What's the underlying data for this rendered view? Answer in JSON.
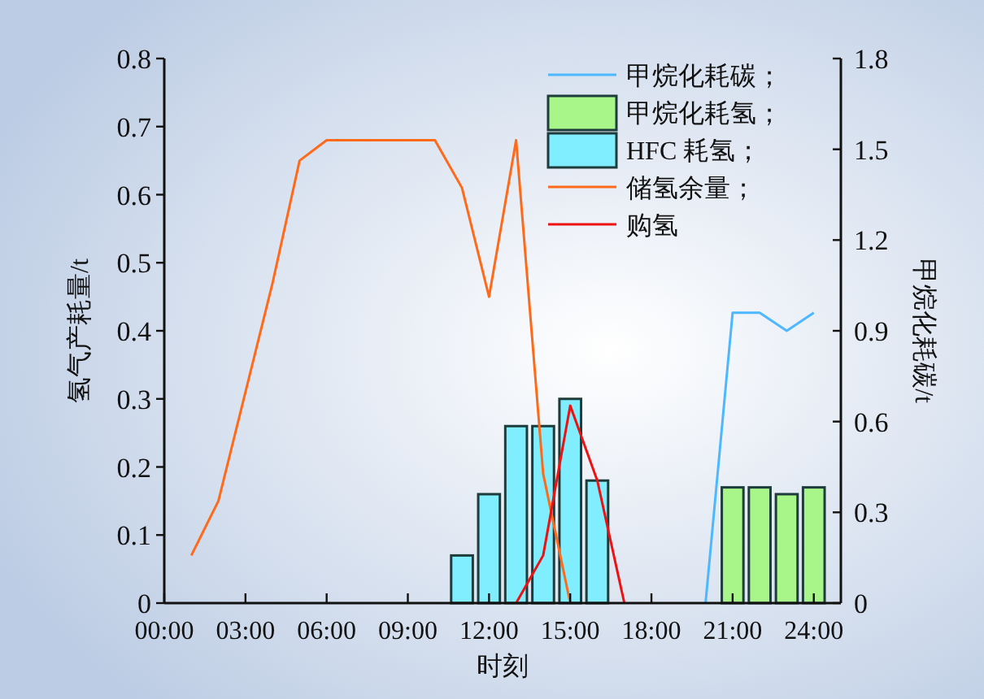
{
  "chart_data": {
    "type": "bar",
    "xlabel": "时刻",
    "ylabel": "氢气产耗量/t",
    "y2label": "甲烷化耗碳/t",
    "xlim": [
      0,
      25
    ],
    "xticks": [
      {
        "value": 0,
        "label": "00:00"
      },
      {
        "value": 3,
        "label": "03:00"
      },
      {
        "value": 6,
        "label": "06:00"
      },
      {
        "value": 9,
        "label": "09:00"
      },
      {
        "value": 12,
        "label": "12:00"
      },
      {
        "value": 15,
        "label": "15:00"
      },
      {
        "value": 18,
        "label": "18:00"
      },
      {
        "value": 21,
        "label": "21:00"
      },
      {
        "value": 24,
        "label": "24:00"
      }
    ],
    "ylim": [
      0,
      0.8
    ],
    "yticks": [
      0,
      0.1,
      0.2,
      0.3,
      0.4,
      0.5,
      0.6,
      0.7,
      0.8
    ],
    "y2lim": [
      0,
      1.8
    ],
    "y2ticks": [
      0,
      0.3,
      0.6,
      0.9,
      1.2,
      1.5,
      1.8
    ],
    "legend": "top right",
    "series": [
      {
        "name": "甲烷化耗碳；",
        "type": "line",
        "axis": "y2",
        "color": "#4db8ff",
        "x": [
          20,
          21,
          22,
          23,
          24
        ],
        "values": [
          0,
          0.96,
          0.96,
          0.9,
          0.96
        ]
      },
      {
        "name": "甲烷化耗氢；",
        "color": "#a8f58a",
        "x": [
          21,
          22,
          23,
          24
        ],
        "values": [
          0.17,
          0.17,
          0.16,
          0.17
        ]
      },
      {
        "name": "HFC 耗氢；",
        "color": "#80eeff",
        "x": [
          11,
          12,
          13,
          14,
          15,
          16
        ],
        "values": [
          0.07,
          0.16,
          0.26,
          0.26,
          0.3,
          0.18
        ]
      },
      {
        "name": "储氢余量；",
        "type": "line",
        "color": "#ff6a1a",
        "x": [
          1,
          2,
          3,
          4,
          5,
          6,
          7,
          8,
          9,
          10,
          11,
          12,
          13,
          14,
          15
        ],
        "values": [
          0.07,
          0.15,
          0.31,
          0.47,
          0.65,
          0.68,
          0.68,
          0.68,
          0.68,
          0.68,
          0.61,
          0.45,
          0.68,
          0.19,
          0
        ]
      },
      {
        "name": "购氢",
        "type": "line",
        "color": "#ee1111",
        "x": [
          13,
          14,
          15,
          16,
          17
        ],
        "values": [
          0,
          0.07,
          0.29,
          0.18,
          0
        ]
      }
    ]
  }
}
